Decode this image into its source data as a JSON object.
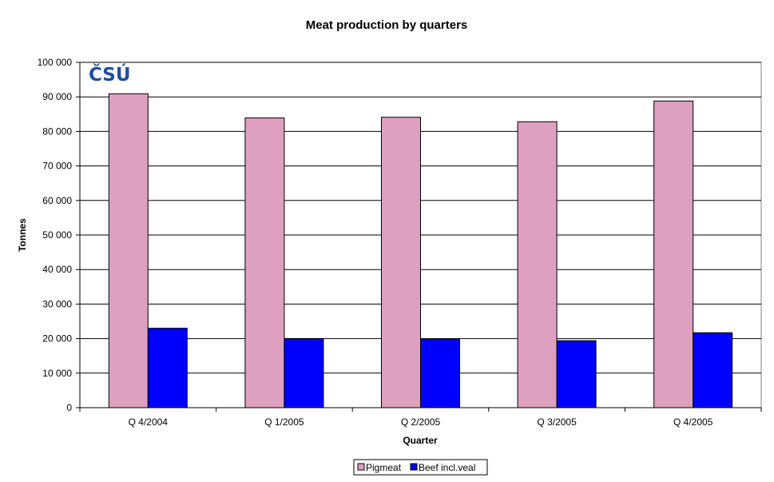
{
  "chart_data": {
    "type": "bar",
    "title": "Meat production by quarters",
    "xlabel": "Quarter",
    "ylabel": "Tonnes",
    "categories": [
      "Q 4/2004",
      "Q 1/2005",
      "Q 2/2005",
      "Q 3/2005",
      "Q 4/2005"
    ],
    "series": [
      {
        "name": "Pigmeat",
        "color": "#dda0c0",
        "values": [
          90900,
          83900,
          84100,
          82800,
          88800
        ]
      },
      {
        "name": "Beef incl.veal",
        "color": "#0000ff",
        "values": [
          23000,
          20000,
          19900,
          19400,
          21700
        ]
      }
    ],
    "ylim": [
      0,
      100000
    ],
    "yticks": [
      0,
      10000,
      20000,
      30000,
      40000,
      50000,
      60000,
      70000,
      80000,
      90000,
      100000
    ],
    "ytick_labels": [
      "0",
      "10 000",
      "20 000",
      "30 000",
      "40 000",
      "50 000",
      "60 000",
      "70 000",
      "80 000",
      "90 000",
      "100 000"
    ],
    "grid": true,
    "legend_position": "bottom-center"
  },
  "logo": {
    "text": "ČSÚ"
  }
}
